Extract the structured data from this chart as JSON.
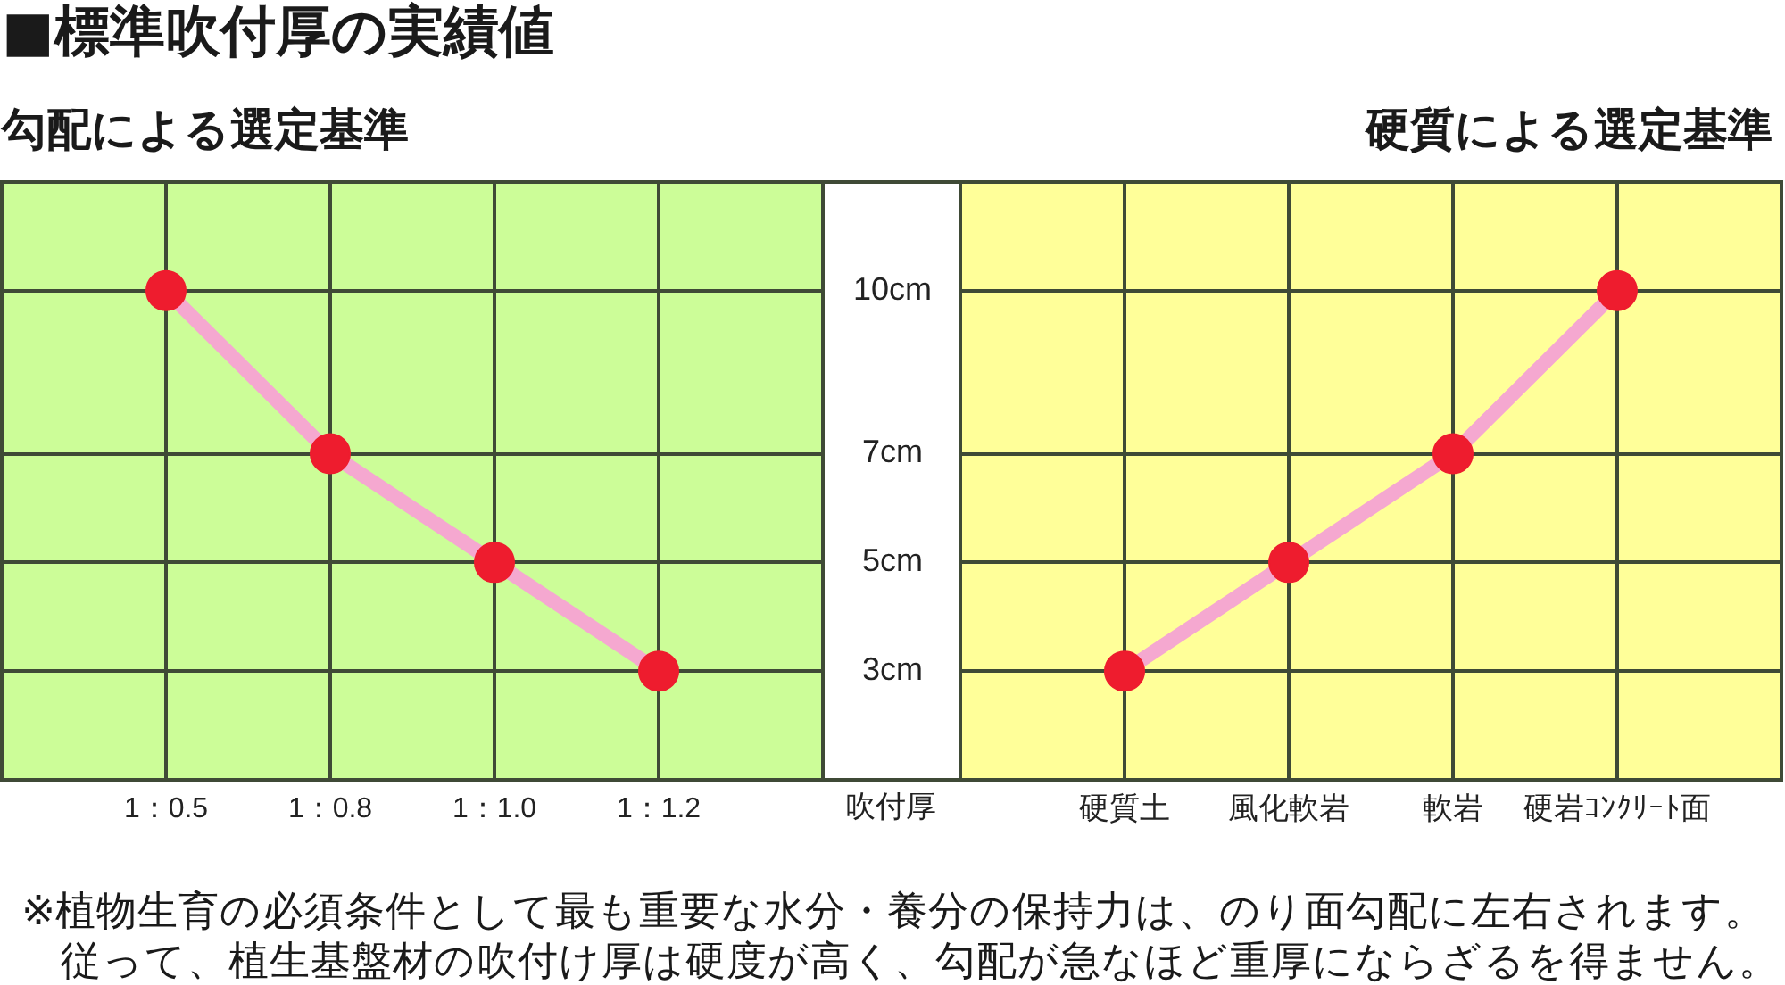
{
  "chart_data": [
    {
      "type": "line",
      "title": "■標準吹付厚の実績値",
      "subtitle": "勾配による選定基準",
      "ylabel": "吹付厚",
      "categories": [
        "1：0.5",
        "1：0.8",
        "1：1.0",
        "1：1.2"
      ],
      "values": [
        10,
        7,
        5,
        3
      ],
      "color": "#f5a8d0",
      "colors": [
        "#ee1c2e",
        "#ee1c2e",
        "#ee1c2e",
        "#ee1c2e"
      ],
      "marker": "circle",
      "ylim": [
        1,
        12
      ],
      "yticks": [
        {
          "value": 3,
          "label": "3cm"
        },
        {
          "value": 5,
          "label": "5cm"
        },
        {
          "value": 7,
          "label": "7cm"
        },
        {
          "value": 10,
          "label": "10cm"
        }
      ],
      "grid": true
    },
    {
      "type": "line",
      "subtitle": "硬質による選定基準",
      "categories": [
        "硬質土",
        "風化軟岩",
        "軟岩",
        "硬岩ｺﾝｸﾘｰﾄ面"
      ],
      "values": [
        3,
        5,
        7,
        10
      ],
      "color": "#f5a8d0",
      "colors": [
        "#ee1c2e",
        "#ee1c2e",
        "#ee1c2e",
        "#ee1c2e"
      ],
      "marker": "circle",
      "ylim": [
        1,
        12
      ],
      "yticks": [
        3,
        5,
        7,
        10
      ],
      "grid": true,
      "tick_labels": "x",
      "annotations": [
        "※植物生育の必須条件として最も重要な水分・養分の保持力は、のり面勾配に左右されます。",
        "従って、植生基盤材の吹付け厚は硬度が高く、勾配が急なほど重厚にならざるを得ません。"
      ]
    }
  ]
}
